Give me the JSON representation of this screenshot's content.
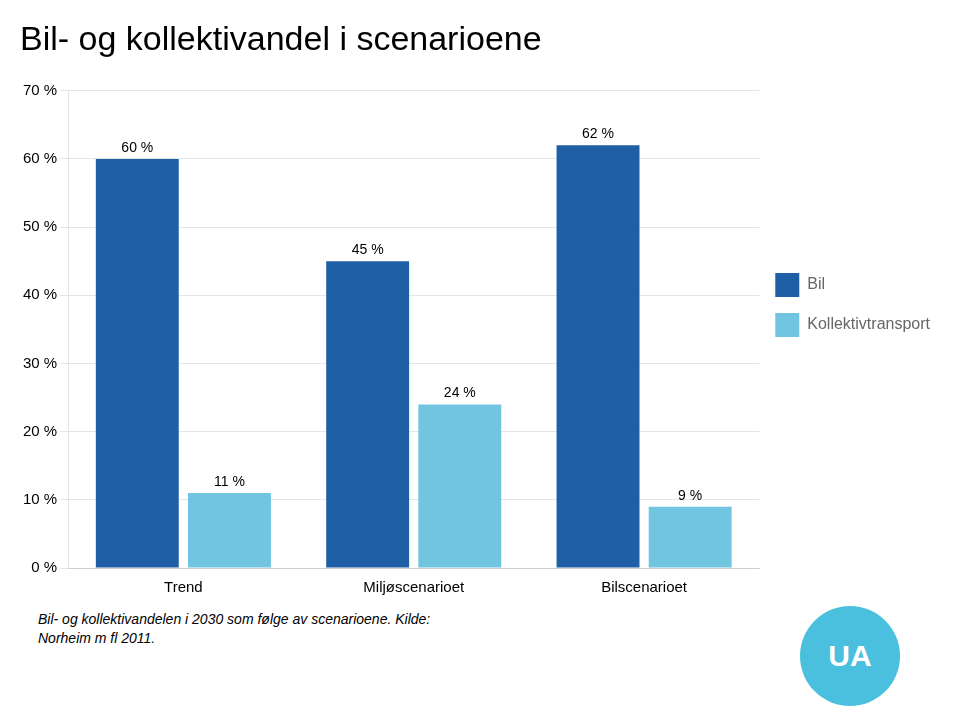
{
  "chart_data": {
    "type": "bar",
    "title": "Bil- og kollektivandel i scenarioene",
    "categories": [
      "Trend",
      "Miljøscenarioet",
      "Bilscenarioet"
    ],
    "series": [
      {
        "name": "Bil",
        "color": "#1F5FA6",
        "values": [
          60,
          45,
          62
        ],
        "value_labels": [
          "60 %",
          "45 %",
          "62 %"
        ]
      },
      {
        "name": "Kollektivtransport",
        "color": "#72C5E0",
        "values": [
          11,
          24,
          9
        ],
        "value_labels": [
          "11 %",
          "24 %",
          "9 %"
        ]
      }
    ],
    "ylim": [
      0,
      70
    ],
    "yticks": [
      {
        "value": 0,
        "label": "0 %"
      },
      {
        "value": 10,
        "label": "10 %"
      },
      {
        "value": 20,
        "label": "20 %"
      },
      {
        "value": 30,
        "label": "30 %"
      },
      {
        "value": 40,
        "label": "40 %"
      },
      {
        "value": 50,
        "label": "50 %"
      },
      {
        "value": 60,
        "label": "60 %"
      },
      {
        "value": 70,
        "label": "70 %"
      }
    ],
    "grid": true,
    "legend": "right",
    "data_labels": true,
    "annotations": [
      {
        "text": "Bil- og kollektivandelen i 2030 som følge av scenarioene. Kilde:"
      },
      {
        "text": "Norheim m fl 2011."
      },
      {
        "text": "UA",
        "color": "#4BBFDE"
      }
    ]
  }
}
